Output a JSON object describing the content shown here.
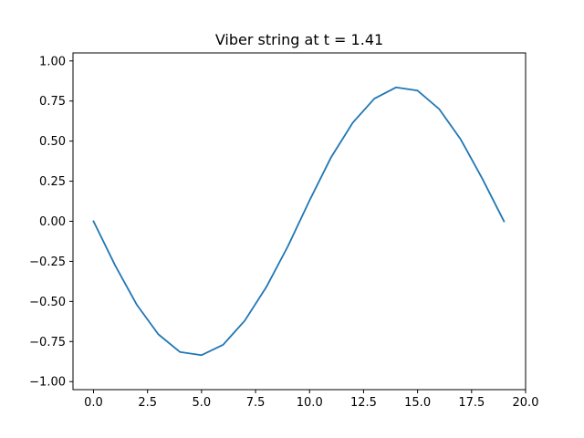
{
  "chart_data": {
    "type": "line",
    "title": "Viber string at t = 1.41",
    "xlabel": "",
    "ylabel": "",
    "xlim": [
      -0.95,
      20.0
    ],
    "ylim": [
      -1.05,
      1.05
    ],
    "x_ticks": [
      0.0,
      2.5,
      5.0,
      7.5,
      10.0,
      12.5,
      15.0,
      17.5,
      20.0
    ],
    "x_tick_labels": [
      "0.0",
      "2.5",
      "5.0",
      "7.5",
      "10.0",
      "12.5",
      "15.0",
      "17.5",
      "20.0"
    ],
    "y_ticks": [
      -1.0,
      -0.75,
      -0.5,
      -0.25,
      0.0,
      0.25,
      0.5,
      0.75,
      1.0
    ],
    "y_tick_labels": [
      "−1.00",
      "−0.75",
      "−0.50",
      "−0.25",
      "0.00",
      "0.25",
      "0.50",
      "0.75",
      "1.00"
    ],
    "grid": false,
    "series": [
      {
        "color": "#1f77b4",
        "x": [
          0,
          1,
          2,
          3,
          4,
          5,
          6,
          7,
          8,
          9,
          10,
          11,
          12,
          13,
          14,
          15,
          16,
          17,
          18,
          19
        ],
        "y": [
          0.0,
          -0.275,
          -0.52,
          -0.705,
          -0.815,
          -0.835,
          -0.77,
          -0.62,
          -0.41,
          -0.155,
          0.13,
          0.4,
          0.615,
          0.765,
          0.835,
          0.815,
          0.7,
          0.51,
          0.265,
          0.0
        ]
      }
    ]
  }
}
